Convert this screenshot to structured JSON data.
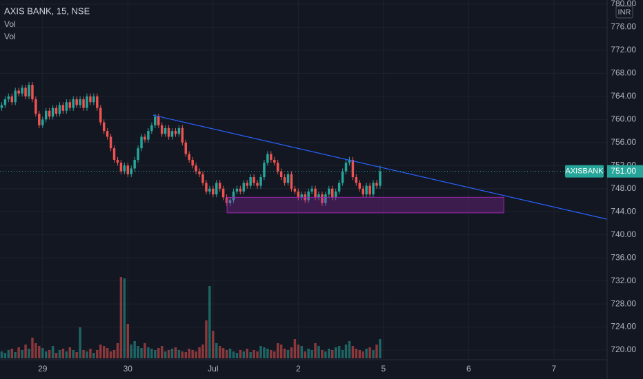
{
  "chart_data": {
    "type": "candlestick",
    "title": "AXIS BANK, 15, NSE",
    "indicators": [
      "Vol",
      "Vol"
    ],
    "currency": "INR",
    "symbol": "AXISBANK",
    "last_price": {
      "value": 751,
      "label": "751.00"
    },
    "up_color": "#26a69a",
    "down_color": "#ef5350",
    "xlim": [
      0,
      178.1
    ],
    "xticks": [
      {
        "value": 12.5,
        "label": "29"
      },
      {
        "value": 37.5,
        "label": "30"
      },
      {
        "value": 62.5,
        "label": "Jul"
      },
      {
        "value": 87.5,
        "label": "2"
      },
      {
        "value": 112.5,
        "label": "5"
      },
      {
        "value": 137.5,
        "label": "6"
      },
      {
        "value": 162.5,
        "label": "7"
      }
    ],
    "ylim": [
      718.57,
      780.72
    ],
    "yticks": [
      {
        "value": 720,
        "label": "720.00"
      },
      {
        "value": 724,
        "label": "724.00"
      },
      {
        "value": 728,
        "label": "728.00"
      },
      {
        "value": 732,
        "label": "732.00"
      },
      {
        "value": 736,
        "label": "736.00"
      },
      {
        "value": 740,
        "label": "740.00"
      },
      {
        "value": 744,
        "label": "744.00"
      },
      {
        "value": 748,
        "label": "748.00"
      },
      {
        "value": 752,
        "label": "752.00"
      },
      {
        "value": 756,
        "label": "756.00"
      },
      {
        "value": 760,
        "label": "760.00"
      },
      {
        "value": 764,
        "label": "764.00"
      },
      {
        "value": 768,
        "label": "768.00"
      },
      {
        "value": 772,
        "label": "772.00"
      },
      {
        "value": 776,
        "label": "776.00"
      },
      {
        "value": 780,
        "label": "780.00"
      }
    ],
    "y2lim": [
      0,
      130
    ],
    "open": [
      762,
      762.5,
      763.5,
      764,
      763,
      765,
      764.5,
      765.5,
      764,
      766,
      763.5,
      761,
      759,
      760,
      761.5,
      760.5,
      762,
      761,
      762.5,
      761.5,
      763,
      762,
      763.5,
      762.5,
      763.5,
      762,
      764,
      763,
      764,
      762,
      759.5,
      758,
      757,
      755,
      753,
      752.5,
      751,
      752,
      750.5,
      751.5,
      753,
      755,
      757,
      756.5,
      758,
      759,
      760.5,
      759,
      757.5,
      758.5,
      757,
      758,
      757.5,
      758.5,
      756,
      754,
      753,
      752,
      751,
      750.5,
      749,
      747.5,
      748,
      747,
      749,
      748,
      746.5,
      745.5,
      746,
      747.5,
      748,
      747.5,
      749,
      748.5,
      750,
      749,
      748.5,
      750,
      752.5,
      754,
      753,
      752.5,
      751,
      750,
      749,
      750.5,
      748,
      747.5,
      746.5,
      747,
      746,
      747.5,
      748,
      746.5,
      747,
      745.5,
      747,
      748,
      746.5,
      747.5,
      749,
      751,
      752.5,
      753,
      750,
      749,
      748,
      747,
      748.5,
      747,
      749,
      748.5
    ],
    "high": [
      763,
      764,
      764.5,
      764.5,
      765.5,
      765.5,
      766,
      766,
      766.5,
      766.5,
      764,
      761.5,
      760.5,
      762,
      762,
      762.5,
      762.5,
      763,
      763,
      763.5,
      763.5,
      764,
      764,
      764,
      764,
      764.5,
      764.5,
      764.5,
      764.5,
      762.5,
      760,
      758.5,
      757.5,
      755.5,
      753.5,
      753,
      752.5,
      752.5,
      752,
      753.5,
      755.5,
      757.5,
      757.5,
      758.5,
      759.5,
      761,
      761,
      759.5,
      759,
      759,
      758.5,
      758.5,
      759,
      759,
      756.5,
      754.5,
      753.5,
      752.5,
      751.5,
      751,
      749.5,
      748.5,
      748.5,
      749.5,
      749.5,
      748.5,
      747,
      746.5,
      748,
      748.5,
      748.5,
      749.5,
      749.5,
      750.5,
      750.5,
      749.5,
      750.5,
      753,
      754.5,
      754.5,
      753.5,
      753,
      751.5,
      750.5,
      751,
      751,
      748.5,
      748,
      747.5,
      747.5,
      748,
      748.5,
      748.5,
      747.5,
      747.5,
      747.5,
      748.5,
      748.5,
      748,
      749.5,
      751.5,
      753,
      753.5,
      753.5,
      750.5,
      749.5,
      748.5,
      749,
      749,
      749.5,
      749.5,
      752
    ],
    "low": [
      761.5,
      762,
      763,
      762.5,
      762.5,
      764,
      764,
      763.5,
      763.5,
      763,
      760.5,
      758.5,
      758.5,
      759.5,
      760,
      760,
      760.5,
      760.5,
      761,
      761,
      761.5,
      761.5,
      762,
      762,
      761.5,
      761.5,
      762.5,
      762.5,
      761.5,
      759,
      757.5,
      756.5,
      754.5,
      752.5,
      752,
      750.5,
      750.5,
      750,
      750,
      751,
      752.5,
      754.5,
      756,
      756,
      757.5,
      758.5,
      758.5,
      757,
      757,
      756.5,
      756.5,
      757,
      757,
      755.5,
      753.5,
      752.5,
      751.5,
      750.5,
      750,
      748.5,
      747,
      747,
      746.5,
      746.5,
      747.5,
      746,
      745,
      745,
      745.5,
      747,
      747,
      747,
      748,
      748,
      748.5,
      748,
      748,
      749.5,
      752,
      752.5,
      752,
      750.5,
      749.5,
      748.5,
      748.5,
      747.5,
      747,
      746,
      746,
      745.5,
      745.5,
      747,
      746,
      746,
      745,
      745,
      746.5,
      746,
      746,
      747,
      748.5,
      750.5,
      752,
      749.5,
      748.5,
      747.5,
      746.5,
      746.5,
      746.5,
      746.5,
      748,
      748
    ],
    "close": [
      762.5,
      763.5,
      764,
      763,
      765,
      764.5,
      765.5,
      764,
      766,
      763.5,
      761,
      759,
      760,
      761.5,
      760.5,
      762,
      761,
      762.5,
      761.5,
      763,
      762,
      763.5,
      762.5,
      763.5,
      762,
      764,
      763,
      764,
      762,
      759.5,
      758,
      757,
      755,
      753,
      752.5,
      751,
      752,
      750.5,
      751.5,
      753,
      755,
      757,
      756.5,
      758,
      759,
      760.5,
      759,
      757.5,
      758.5,
      757,
      758,
      757.5,
      758.5,
      756,
      754,
      753,
      752,
      751,
      750.5,
      749,
      747.5,
      748,
      747,
      749,
      748,
      746.5,
      745.5,
      746,
      747.5,
      748,
      747.5,
      749,
      748.5,
      750,
      749,
      748.5,
      750,
      752.5,
      754,
      753,
      752.5,
      751,
      750,
      749,
      750.5,
      748,
      747.5,
      746.5,
      747,
      746,
      747.5,
      748,
      746.5,
      747,
      745.5,
      747,
      748,
      746.5,
      747.5,
      749,
      751,
      752.5,
      753,
      750,
      749,
      748,
      747,
      748.5,
      747,
      749,
      748.5,
      751
    ],
    "volume": {
      "axis": "y2",
      "values": [
        10,
        8,
        12,
        14,
        9,
        16,
        12,
        20,
        14,
        30,
        22,
        18,
        15,
        10,
        12,
        18,
        8,
        12,
        14,
        10,
        16,
        12,
        9,
        45,
        12,
        10,
        14,
        8,
        12,
        20,
        18,
        15,
        10,
        12,
        22,
        118,
        116,
        50,
        20,
        25,
        18,
        15,
        22,
        16,
        14,
        12,
        15,
        18,
        10,
        12,
        14,
        16,
        12,
        10,
        9,
        14,
        12,
        10,
        16,
        20,
        55,
        105,
        40,
        22,
        18,
        15,
        12,
        14,
        10,
        8,
        12,
        10,
        14,
        9,
        12,
        10,
        18,
        16,
        14,
        12,
        10,
        22,
        20,
        14,
        12,
        16,
        28,
        20,
        18,
        10,
        14,
        12,
        22,
        18,
        12,
        10,
        14,
        12,
        16,
        18,
        12,
        20,
        25,
        18,
        14,
        12,
        10,
        14,
        16,
        12,
        20,
        28
      ]
    },
    "annotations": {
      "trend_line": {
        "color": "#2962ff",
        "x": [
          44.9,
          178.1
        ],
        "y": [
          760.75,
          742.7
        ]
      },
      "rectangle": {
        "color": "#9c27b0",
        "x": [
          66.6,
          147.8
        ],
        "y": [
          743.8,
          746.5
        ]
      }
    }
  }
}
